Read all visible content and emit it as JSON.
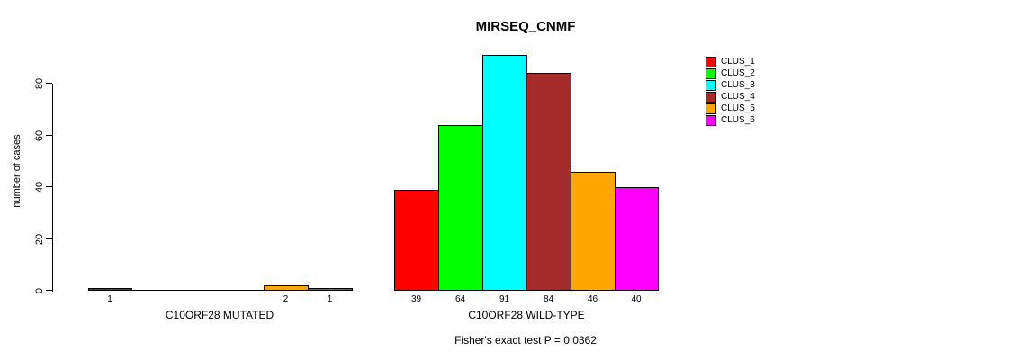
{
  "title": "MIRSEQ_CNMF",
  "y_axis": {
    "label": "number of cases",
    "ticks": [
      "0",
      "20",
      "40",
      "60",
      "80"
    ]
  },
  "legend": {
    "items": [
      {
        "label": "CLUS_1",
        "color": "#ff0000"
      },
      {
        "label": "CLUS_2",
        "color": "#00ff00"
      },
      {
        "label": "CLUS_3",
        "color": "#00ffff"
      },
      {
        "label": "CLUS_4",
        "color": "#a52a2a"
      },
      {
        "label": "CLUS_5",
        "color": "#ffa500"
      },
      {
        "label": "CLUS_6",
        "color": "#ff00ff"
      }
    ]
  },
  "groups": {
    "mutated_label": "C10ORF28 MUTATED",
    "wild_type_label": "C10ORF28 WILD-TYPE"
  },
  "annotation": "Fisher's exact test P = 0.0362",
  "chart_data": {
    "type": "bar",
    "title": "MIRSEQ_CNMF",
    "ylabel": "number of cases",
    "ylim": [
      0,
      80
    ],
    "yticks": [
      0,
      20,
      40,
      60,
      80
    ],
    "grid": false,
    "legend_position": "right-outside",
    "series_labels": [
      "CLUS_1",
      "CLUS_2",
      "CLUS_3",
      "CLUS_4",
      "CLUS_5",
      "CLUS_6"
    ],
    "series_colors": [
      "#ff0000",
      "#00ff00",
      "#00ffff",
      "#a52a2a",
      "#ffa500",
      "#ff00ff"
    ],
    "groups": [
      {
        "label": "C10ORF28 MUTATED",
        "values": [
          1,
          0,
          0,
          0,
          2,
          1
        ]
      },
      {
        "label": "C10ORF28 WILD-TYPE",
        "values": [
          39,
          64,
          91,
          84,
          46,
          40
        ]
      }
    ],
    "bar_value_labels_visible_when_nonzero": true,
    "annotation": "Fisher's exact test P = 0.0362"
  }
}
